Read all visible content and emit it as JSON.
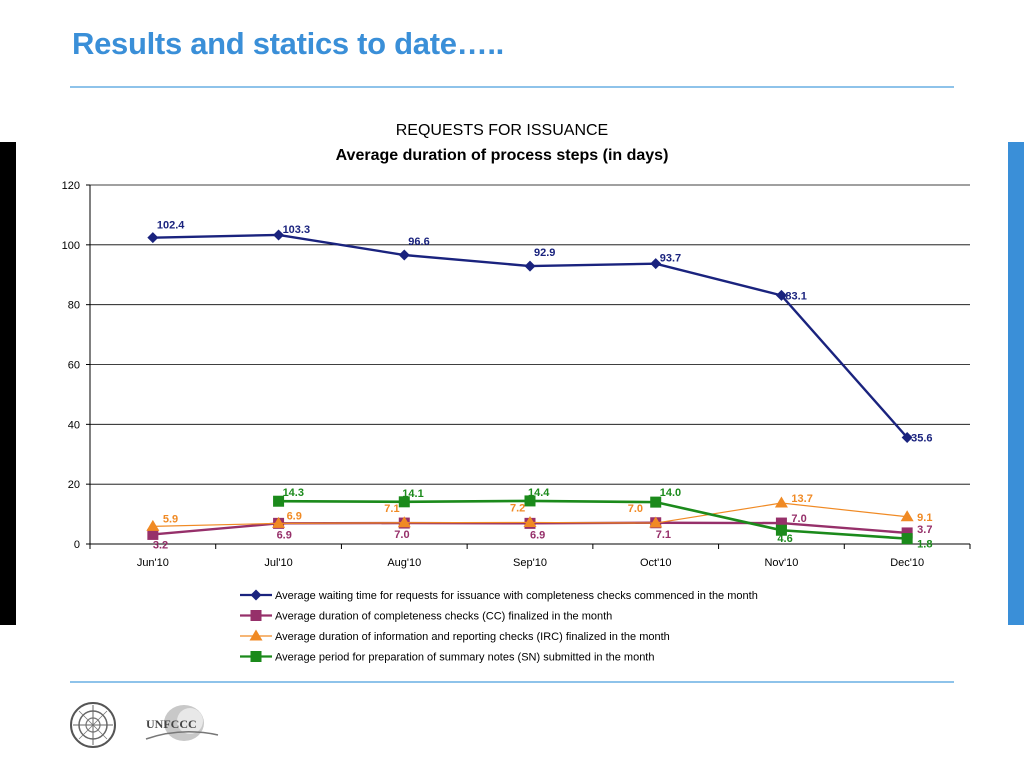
{
  "slide": {
    "title": "Results and statics to date…..",
    "colors": {
      "title": "#3a8fd8",
      "rule": "#8ec3ea",
      "side_left": "#000000",
      "side_right": "#3a8fd8"
    },
    "logos": {
      "un_emblem": "un-emblem-icon",
      "unfccc": "UNFCCC"
    }
  },
  "chart_data": {
    "type": "line",
    "title": "REQUESTS FOR ISSUANCE",
    "subtitle": "Average duration of process steps (in days)",
    "categories": [
      "Jun'10",
      "Jul'10",
      "Aug'10",
      "Sep'10",
      "Oct'10",
      "Nov'10",
      "Dec'10"
    ],
    "ylim": [
      0,
      120
    ],
    "yticks": [
      0,
      20,
      40,
      60,
      80,
      100,
      120
    ],
    "grid": true,
    "legend": "bottom",
    "series": [
      {
        "name": "Average waiting time for requests for issuance with completeness checks commenced in the month",
        "color": "#1a237e",
        "marker": "diamond",
        "values": [
          102.4,
          103.3,
          96.6,
          92.9,
          93.7,
          83.1,
          35.6
        ],
        "labels": [
          "102.4",
          "103.3",
          "96.6",
          "92.9",
          "93.7",
          "83.1",
          "35.6"
        ]
      },
      {
        "name": "Average duration of completeness checks (CC) finalized in the month",
        "color": "#96306a",
        "marker": "square",
        "values": [
          3.2,
          6.9,
          7.0,
          6.9,
          7.1,
          7.0,
          3.7
        ],
        "labels": [
          "3.2",
          "6.9",
          "7.0",
          "6.9",
          "7.1",
          "7.0",
          "3.7"
        ]
      },
      {
        "name": "Average duration of information and reporting checks (IRC) finalized in the month",
        "color": "#f08a24",
        "marker": "triangle",
        "values": [
          5.9,
          6.9,
          7.1,
          7.2,
          7.0,
          13.7,
          9.1
        ],
        "labels": [
          "5.9",
          "6.9",
          "7.1",
          "7.2",
          "7.0",
          "13.7",
          "9.1"
        ]
      },
      {
        "name": "Average period for preparation of summary notes (SN) submitted in the month",
        "color": "#1b8a1b",
        "marker": "square",
        "values": [
          null,
          14.3,
          14.1,
          14.4,
          14.0,
          4.6,
          1.8
        ],
        "labels": [
          null,
          "14.3",
          "14.1",
          "14.4",
          "14.0",
          "4.6",
          "1.8"
        ]
      }
    ]
  }
}
